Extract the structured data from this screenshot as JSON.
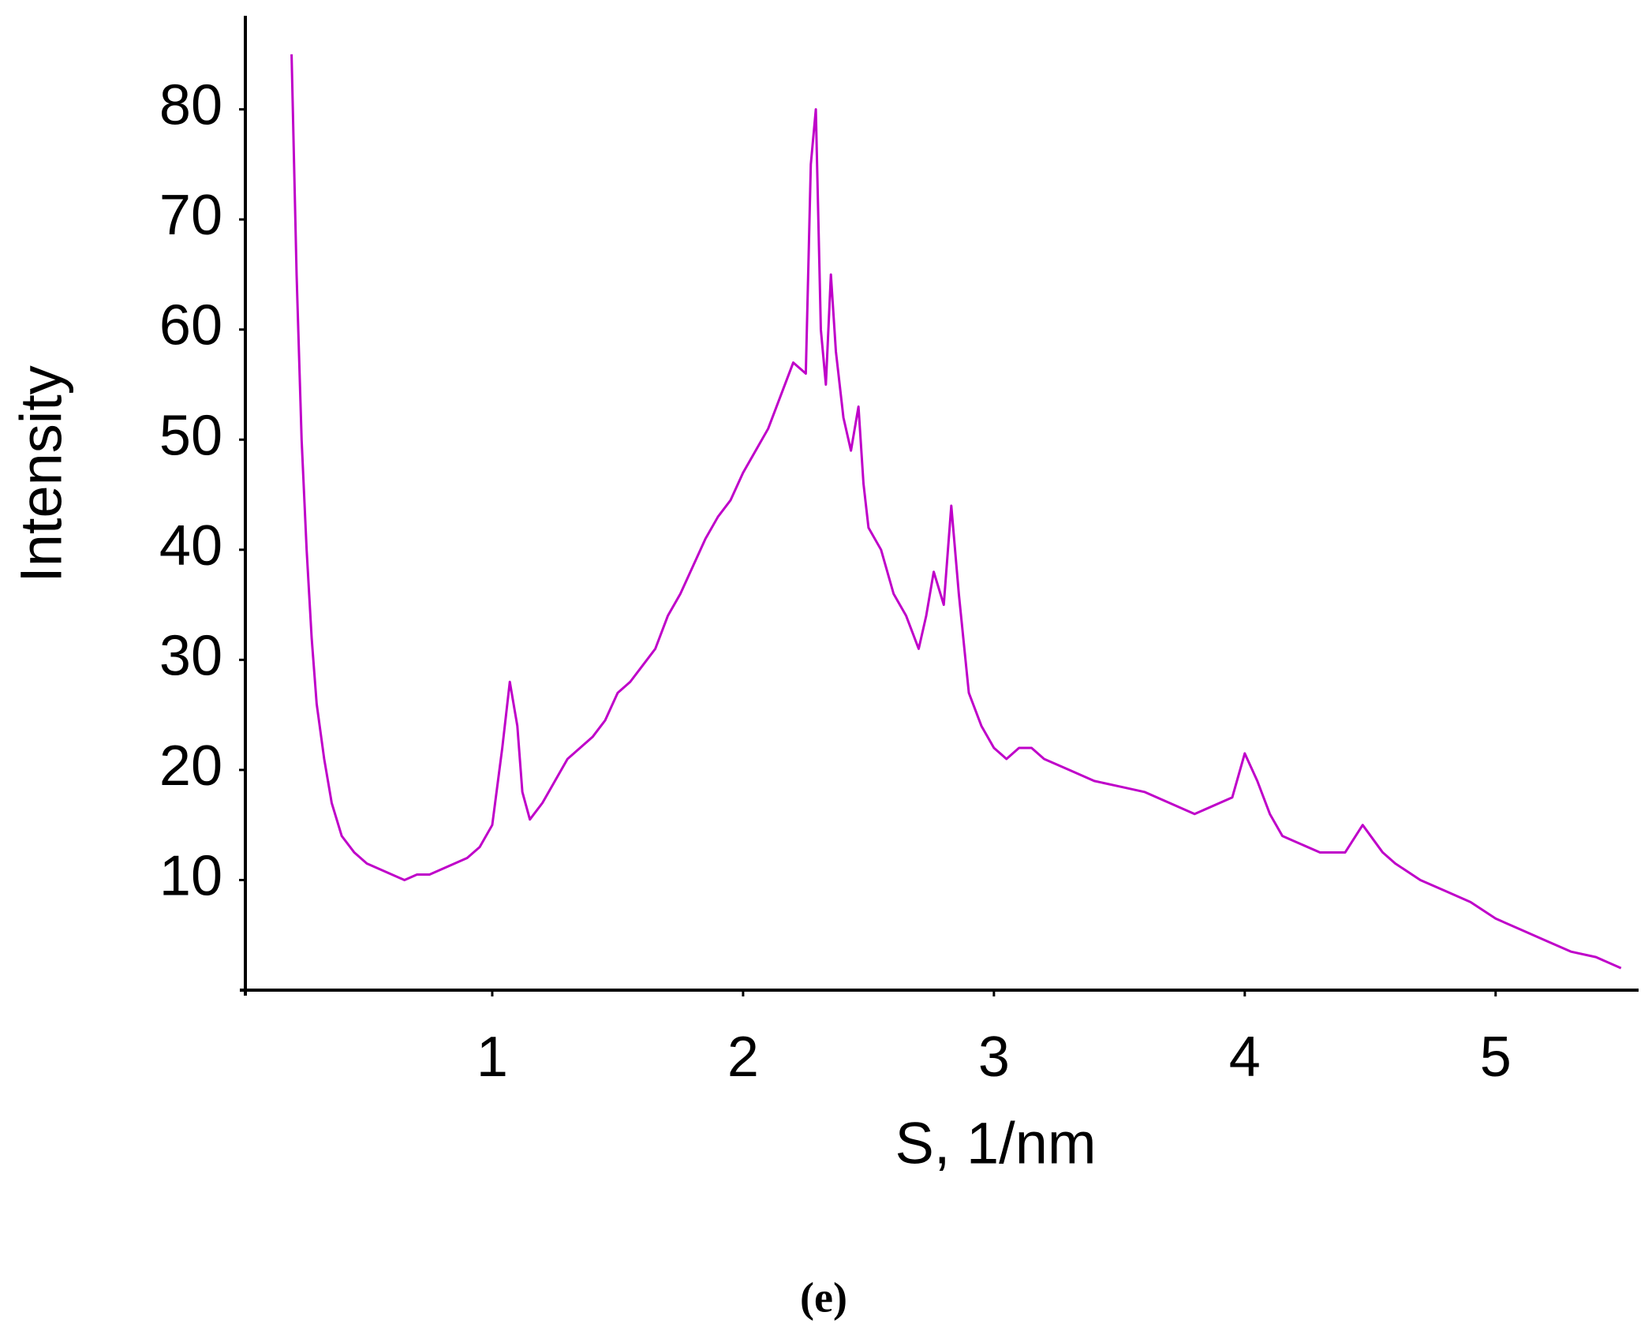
{
  "chart_data": {
    "type": "line",
    "xlabel": "S,  1/nm",
    "ylabel": "Intensity",
    "caption": "(e)",
    "xlim": [
      0,
      5.57
    ],
    "ylim": [
      0,
      88.5
    ],
    "xticks": [
      1,
      2,
      3,
      4,
      5
    ],
    "yticks": [
      10,
      20,
      30,
      40,
      50,
      60,
      70,
      80
    ],
    "series": [
      {
        "color": "#bf00c9",
        "x": [
          0.2,
          0.22,
          0.24,
          0.26,
          0.28,
          0.3,
          0.33,
          0.36,
          0.4,
          0.45,
          0.5,
          0.55,
          0.6,
          0.65,
          0.7,
          0.75,
          0.8,
          0.85,
          0.9,
          0.95,
          1.0,
          1.04,
          1.07,
          1.1,
          1.12,
          1.15,
          1.2,
          1.25,
          1.3,
          1.35,
          1.4,
          1.45,
          1.5,
          1.55,
          1.6,
          1.65,
          1.7,
          1.75,
          1.8,
          1.85,
          1.9,
          1.95,
          2.0,
          2.05,
          2.1,
          2.15,
          2.2,
          2.25,
          2.27,
          2.29,
          2.31,
          2.33,
          2.35,
          2.37,
          2.4,
          2.43,
          2.46,
          2.48,
          2.5,
          2.55,
          2.6,
          2.65,
          2.7,
          2.73,
          2.76,
          2.8,
          2.83,
          2.86,
          2.9,
          2.95,
          3.0,
          3.05,
          3.1,
          3.15,
          3.2,
          3.3,
          3.4,
          3.5,
          3.6,
          3.7,
          3.8,
          3.9,
          3.95,
          4.0,
          4.05,
          4.1,
          4.15,
          4.2,
          4.3,
          4.4,
          4.47,
          4.55,
          4.6,
          4.7,
          4.8,
          4.9,
          5.0,
          5.1,
          5.2,
          5.3,
          5.4,
          5.5
        ],
        "values": [
          85,
          65,
          50,
          40,
          32,
          26,
          21,
          17,
          14,
          12.5,
          11.5,
          11,
          10.5,
          10,
          10.5,
          10.5,
          11,
          11.5,
          12,
          13,
          15,
          22,
          28,
          24,
          18,
          15.5,
          17,
          19,
          21,
          22,
          23,
          24.5,
          27,
          28,
          29.5,
          31,
          34,
          36,
          38.5,
          41,
          43,
          44.5,
          47,
          49,
          51,
          54,
          57,
          56,
          75,
          80,
          60,
          55,
          65,
          58,
          52,
          49,
          53,
          46,
          42,
          40,
          36,
          34,
          31,
          34,
          38,
          35,
          44,
          36,
          27,
          24,
          22,
          21,
          22,
          22,
          21,
          20,
          19,
          18.5,
          18,
          17,
          16,
          17,
          17.5,
          21.5,
          19,
          16,
          14,
          13.5,
          12.5,
          12.5,
          15,
          12.5,
          11.5,
          10,
          9,
          8,
          6.5,
          5.5,
          4.5,
          3.5,
          3,
          2
        ]
      }
    ]
  }
}
